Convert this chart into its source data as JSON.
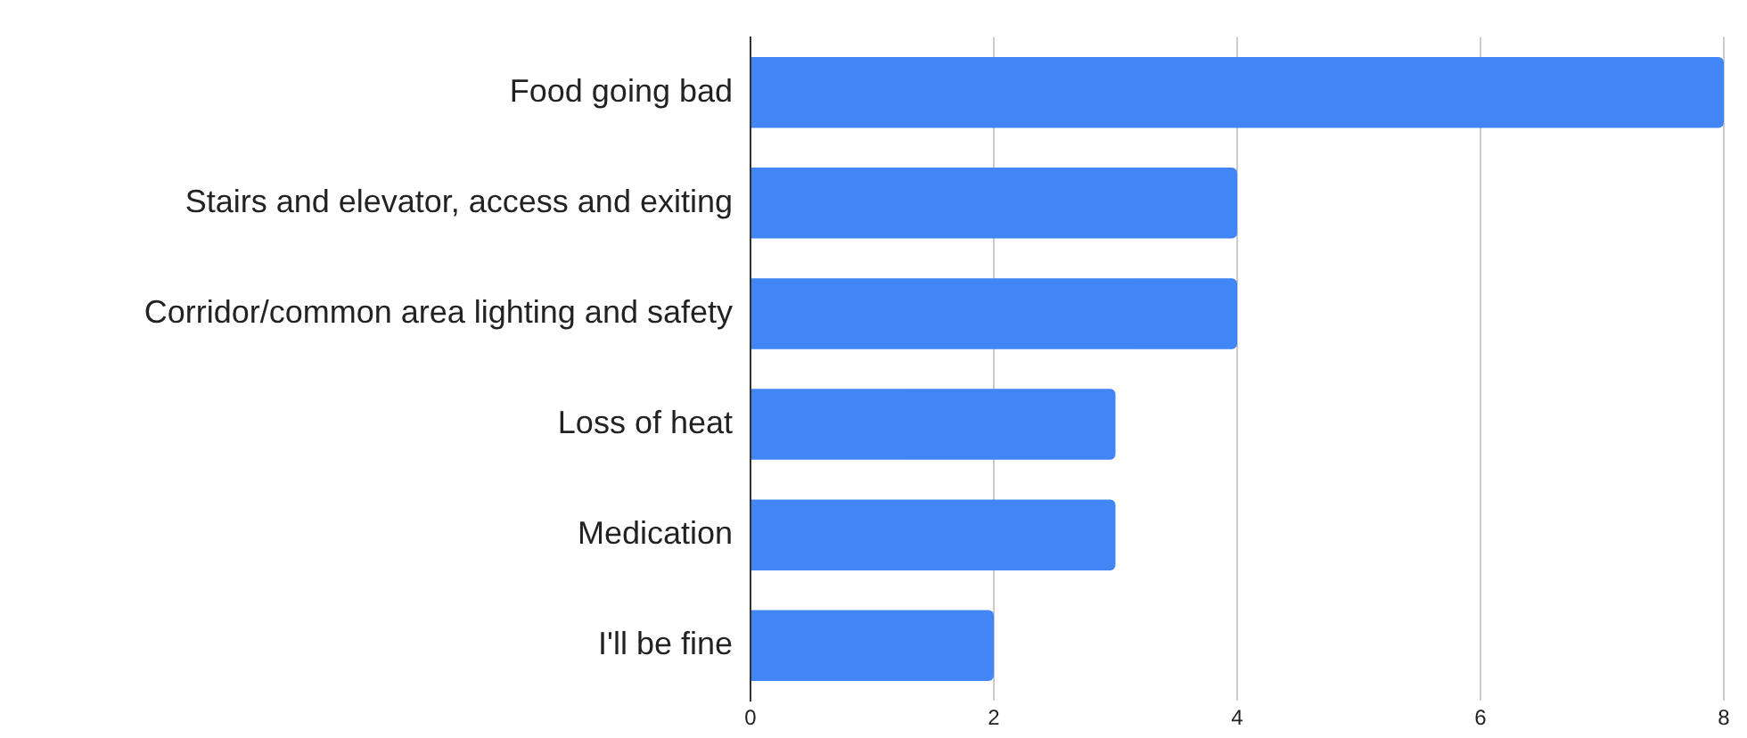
{
  "chart_data": {
    "type": "bar",
    "orientation": "horizontal",
    "categories": [
      "Food going bad",
      "Stairs and elevator, access and exiting",
      "Corridor/common area lighting and safety",
      "Loss of heat",
      "Medication",
      "I'll be fine"
    ],
    "values": [
      8,
      4,
      4,
      3,
      3,
      2
    ],
    "color": "#4285f4",
    "xlim": [
      0,
      8
    ],
    "xticks": [
      0,
      2,
      4,
      6,
      8
    ],
    "grid": "x"
  }
}
